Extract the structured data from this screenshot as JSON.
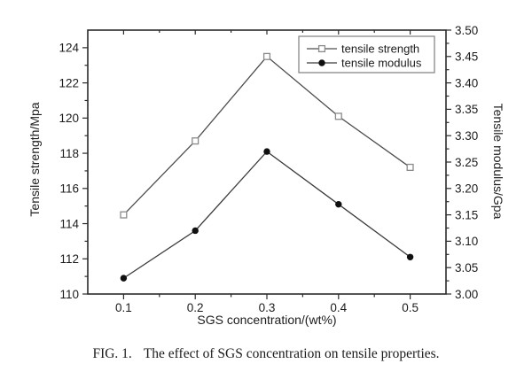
{
  "figure": {
    "caption": {
      "prefix": "FIG. 1.",
      "text": "The effect of SGS concentration on tensile properties."
    }
  },
  "chart_data": {
    "type": "line",
    "title": "",
    "xlabel": "SGS concentration/(wt%)",
    "ylabel_left": "Tensile strength/Mpa",
    "ylabel_right": "Tensile modulus/Gpa",
    "x": [
      0.1,
      0.2,
      0.3,
      0.4,
      0.5
    ],
    "series": [
      {
        "name": "tensile strength",
        "axis": "left",
        "marker": "open-square",
        "values": [
          114.5,
          118.7,
          123.5,
          120.1,
          117.2
        ]
      },
      {
        "name": "tensile modulus",
        "axis": "right",
        "marker": "filled-circle",
        "values": [
          3.03,
          3.12,
          3.27,
          3.17,
          3.07
        ]
      }
    ],
    "axes": {
      "x": {
        "min": 0.05,
        "max": 0.55,
        "tick_values": [
          0.1,
          0.2,
          0.3,
          0.4,
          0.5
        ],
        "tick_labels": [
          "0.1",
          "0.2",
          "0.3",
          "0.4",
          "0.5"
        ],
        "minor_tick_values": [
          0.15,
          0.25,
          0.35,
          0.45
        ]
      },
      "left": {
        "min": 110,
        "max": 125,
        "tick_values": [
          110,
          112,
          114,
          116,
          118,
          120,
          122,
          124
        ],
        "tick_labels": [
          "110",
          "112",
          "114",
          "116",
          "118",
          "120",
          "122",
          "124"
        ],
        "minor_tick_values": [
          111,
          113,
          115,
          117,
          119,
          121,
          123
        ]
      },
      "right": {
        "min": 3.0,
        "max": 3.5,
        "tick_values": [
          3.0,
          3.05,
          3.1,
          3.15,
          3.2,
          3.25,
          3.3,
          3.35,
          3.4,
          3.45,
          3.5
        ],
        "tick_labels": [
          "3.00",
          "3.05",
          "3.10",
          "3.15",
          "3.20",
          "3.25",
          "3.30",
          "3.35",
          "3.40",
          "3.45",
          "3.50"
        ],
        "minor_tick_values": [
          3.025,
          3.075,
          3.125,
          3.175,
          3.225,
          3.275,
          3.325,
          3.375,
          3.425,
          3.475
        ]
      }
    },
    "legend": {
      "position": "top-right",
      "entries": [
        "tensile strength",
        "tensile modulus"
      ]
    },
    "grid": false,
    "colors": {
      "axis": "#2b2b2b",
      "text": "#1c1c1c",
      "strength_line": "#4d4d4d",
      "strength_marker_edge": "#8a8a8a",
      "modulus_line": "#3a3a3a",
      "modulus_marker": "#101010",
      "legend_border": "#7f7f7f",
      "background": "#ffffff"
    }
  }
}
